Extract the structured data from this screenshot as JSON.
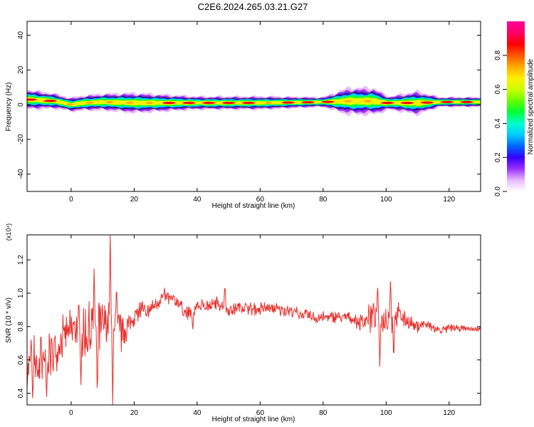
{
  "title": "C2E6.2024.265.03.21.G27",
  "chart_data": [
    {
      "type": "heatmap",
      "xlabel": "Height of straight line (km)",
      "ylabel": "Frequency (Hz)",
      "xlim": [
        -14,
        130
      ],
      "ylim": [
        -50,
        48
      ],
      "x_ticks": [
        "0",
        "20",
        "40",
        "60",
        "80",
        "100",
        "120"
      ],
      "y_ticks": [
        "40",
        "20",
        "0",
        "-20",
        "-40"
      ],
      "grid": false,
      "colorbar": {
        "label": "Normalized spectral amplitude",
        "range": [
          0.0,
          1.0
        ],
        "ticks": [
          "0.0",
          "0.2",
          "0.4",
          "0.6",
          "0.8"
        ],
        "colors": [
          "#ffffff",
          "#e8b8ff",
          "#9b30ff",
          "#3300ff",
          "#0066ff",
          "#00ccff",
          "#00ffcc",
          "#00ff33",
          "#66ff00",
          "#ccff00",
          "#ffee00",
          "#ffaa00",
          "#ff5500",
          "#ff0000",
          "#ff0066",
          "#ff0099"
        ]
      },
      "signal_center_hz": [
        {
          "x": -14,
          "y": 3
        },
        {
          "x": -5,
          "y": 2
        },
        {
          "x": 0,
          "y": 0
        },
        {
          "x": 4,
          "y": 1
        },
        {
          "x": 10,
          "y": 1.5
        },
        {
          "x": 20,
          "y": 1
        },
        {
          "x": 40,
          "y": 1
        },
        {
          "x": 60,
          "y": 1
        },
        {
          "x": 80,
          "y": 1.5
        },
        {
          "x": 88,
          "y": 2
        },
        {
          "x": 96,
          "y": 2
        },
        {
          "x": 100,
          "y": 1
        },
        {
          "x": 110,
          "y": 1
        },
        {
          "x": 117,
          "y": 1.5
        },
        {
          "x": 130,
          "y": 1.5
        }
      ],
      "signal_halfwidth_hz": [
        {
          "x": -14,
          "y": 3
        },
        {
          "x": -2,
          "y": 2
        },
        {
          "x": 10,
          "y": 2.5
        },
        {
          "x": 20,
          "y": 3
        },
        {
          "x": 40,
          "y": 2
        },
        {
          "x": 60,
          "y": 2
        },
        {
          "x": 80,
          "y": 1.5
        },
        {
          "x": 88,
          "y": 4
        },
        {
          "x": 96,
          "y": 4
        },
        {
          "x": 101,
          "y": 2
        },
        {
          "x": 110,
          "y": 3.5
        },
        {
          "x": 117,
          "y": 1.5
        },
        {
          "x": 130,
          "y": 1.5
        }
      ]
    },
    {
      "type": "line",
      "xlabel": "Height of straight line (km)",
      "ylabel": "SNR (10 * v/v)",
      "y_multiplier": "(x10⁴)",
      "xlim": [
        -14,
        130
      ],
      "ylim": [
        0.33,
        1.35
      ],
      "x_ticks": [
        "0",
        "20",
        "40",
        "60",
        "80",
        "100",
        "120"
      ],
      "y_ticks": [
        "0.4",
        "0.6",
        "0.8",
        "1.0",
        "1.2"
      ],
      "grid": false,
      "series": [
        {
          "color": "#e8302c",
          "points": [
            {
              "x": -14,
              "y": 0.52
            },
            {
              "x": -12,
              "y": 0.62
            },
            {
              "x": -10,
              "y": 0.5
            },
            {
              "x": -8,
              "y": 0.6
            },
            {
              "x": -6,
              "y": 0.66
            },
            {
              "x": -4,
              "y": 0.7
            },
            {
              "x": -2,
              "y": 0.75
            },
            {
              "x": 0,
              "y": 0.78
            },
            {
              "x": 2,
              "y": 0.8
            },
            {
              "x": 4,
              "y": 0.74
            },
            {
              "x": 6,
              "y": 0.76
            },
            {
              "x": 8,
              "y": 0.78
            },
            {
              "x": 10,
              "y": 0.8
            },
            {
              "x": 12,
              "y": 0.82
            },
            {
              "x": 14,
              "y": 0.84
            },
            {
              "x": 16,
              "y": 0.76
            },
            {
              "x": 18,
              "y": 0.8
            },
            {
              "x": 20,
              "y": 0.86
            },
            {
              "x": 22,
              "y": 0.9
            },
            {
              "x": 24,
              "y": 0.88
            },
            {
              "x": 26,
              "y": 0.92
            },
            {
              "x": 28,
              "y": 0.96
            },
            {
              "x": 30,
              "y": 0.98
            },
            {
              "x": 32,
              "y": 0.96
            },
            {
              "x": 34,
              "y": 0.95
            },
            {
              "x": 36,
              "y": 0.88
            },
            {
              "x": 38,
              "y": 0.88
            },
            {
              "x": 40,
              "y": 0.92
            },
            {
              "x": 42,
              "y": 0.93
            },
            {
              "x": 44,
              "y": 0.92
            },
            {
              "x": 46,
              "y": 0.94
            },
            {
              "x": 48,
              "y": 0.93
            },
            {
              "x": 50,
              "y": 0.9
            },
            {
              "x": 52,
              "y": 0.91
            },
            {
              "x": 54,
              "y": 0.92
            },
            {
              "x": 56,
              "y": 0.91
            },
            {
              "x": 58,
              "y": 0.9
            },
            {
              "x": 60,
              "y": 0.9
            },
            {
              "x": 62,
              "y": 0.91
            },
            {
              "x": 64,
              "y": 0.91
            },
            {
              "x": 66,
              "y": 0.9
            },
            {
              "x": 68,
              "y": 0.9
            },
            {
              "x": 70,
              "y": 0.89
            },
            {
              "x": 72,
              "y": 0.88
            },
            {
              "x": 74,
              "y": 0.87
            },
            {
              "x": 76,
              "y": 0.86
            },
            {
              "x": 78,
              "y": 0.85
            },
            {
              "x": 80,
              "y": 0.86
            },
            {
              "x": 82,
              "y": 0.85
            },
            {
              "x": 84,
              "y": 0.86
            },
            {
              "x": 86,
              "y": 0.85
            },
            {
              "x": 88,
              "y": 0.86
            },
            {
              "x": 90,
              "y": 0.84
            },
            {
              "x": 92,
              "y": 0.82
            },
            {
              "x": 94,
              "y": 0.86
            },
            {
              "x": 96,
              "y": 0.86
            },
            {
              "x": 98,
              "y": 0.84
            },
            {
              "x": 100,
              "y": 0.85
            },
            {
              "x": 102,
              "y": 0.86
            },
            {
              "x": 104,
              "y": 0.86
            },
            {
              "x": 106,
              "y": 0.84
            },
            {
              "x": 108,
              "y": 0.82
            },
            {
              "x": 110,
              "y": 0.8
            },
            {
              "x": 112,
              "y": 0.82
            },
            {
              "x": 114,
              "y": 0.8
            },
            {
              "x": 116,
              "y": 0.78
            },
            {
              "x": 118,
              "y": 0.78
            },
            {
              "x": 120,
              "y": 0.79
            },
            {
              "x": 122,
              "y": 0.79
            },
            {
              "x": 124,
              "y": 0.79
            },
            {
              "x": 126,
              "y": 0.79
            },
            {
              "x": 128,
              "y": 0.78
            },
            {
              "x": 130,
              "y": 0.79
            }
          ],
          "noise_amplitude": [
            {
              "x": -14,
              "y": 0.18
            },
            {
              "x": -5,
              "y": 0.2
            },
            {
              "x": 0,
              "y": 0.16
            },
            {
              "x": 6,
              "y": 0.28
            },
            {
              "x": 10,
              "y": 0.26
            },
            {
              "x": 14,
              "y": 0.18
            },
            {
              "x": 20,
              "y": 0.1
            },
            {
              "x": 30,
              "y": 0.06
            },
            {
              "x": 40,
              "y": 0.06
            },
            {
              "x": 60,
              "y": 0.05
            },
            {
              "x": 90,
              "y": 0.05
            },
            {
              "x": 96,
              "y": 0.14
            },
            {
              "x": 102,
              "y": 0.16
            },
            {
              "x": 106,
              "y": 0.06
            },
            {
              "x": 116,
              "y": 0.04
            },
            {
              "x": 130,
              "y": 0.02
            }
          ],
          "spikes": [
            {
              "x": -12.7,
              "y": 0.73
            },
            {
              "x": -12.2,
              "y": 0.34
            },
            {
              "x": -9.6,
              "y": 0.8
            },
            {
              "x": -7.8,
              "y": 0.35
            },
            {
              "x": 2.4,
              "y": 0.97
            },
            {
              "x": 3.1,
              "y": 0.43
            },
            {
              "x": 7.3,
              "y": 1.17
            },
            {
              "x": 8.3,
              "y": 0.36
            },
            {
              "x": 12.4,
              "y": 1.36
            },
            {
              "x": 13.2,
              "y": 0.33
            },
            {
              "x": 14.4,
              "y": 1.06
            },
            {
              "x": 38.6,
              "y": 0.77
            },
            {
              "x": 48.8,
              "y": 1.06
            },
            {
              "x": 97.3,
              "y": 1.07
            },
            {
              "x": 98.0,
              "y": 0.56
            },
            {
              "x": 101.4,
              "y": 1.1
            },
            {
              "x": 102.4,
              "y": 0.58
            }
          ]
        }
      ]
    }
  ]
}
